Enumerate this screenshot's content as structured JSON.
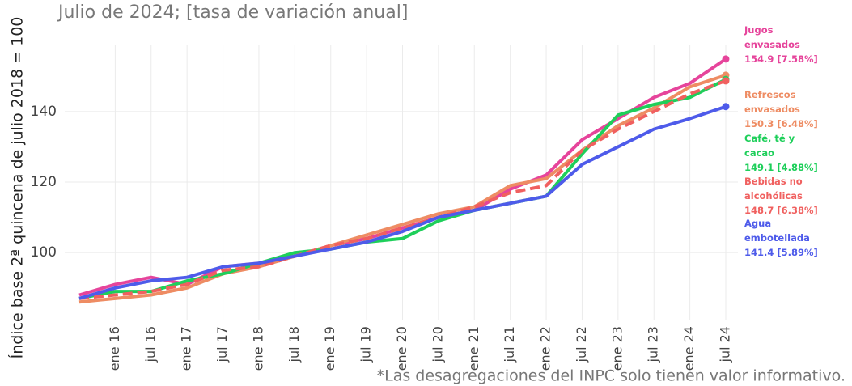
{
  "chart_data": {
    "type": "line",
    "title": "Julio de 2024; [tasa de variación anual]",
    "y_label": "Índice base 2ª quincena de julio 2018 = 100",
    "note": "*Las desagregaciones del INPC solo tienen valor informativo.",
    "categories": [
      null,
      "ene 16",
      "jul 16",
      "ene 17",
      "jul 17",
      "ene 18",
      "jul 18",
      "ene 19",
      "jul 19",
      "ene 20",
      "jul 20",
      "ene 21",
      "jul 21",
      "ene 22",
      "jul 22",
      "ene 23",
      "jul 23",
      "ene 24",
      "jul 24"
    ],
    "ylim": [
      81,
      159
    ],
    "yticks": [
      100,
      120,
      140
    ],
    "grid": true,
    "series": [
      {
        "name": "Jugos envasados",
        "label": "154.9 [7.58%]",
        "color": "#e6449b",
        "dashed": false,
        "values": [
          88,
          91,
          93,
          91,
          96,
          97,
          99,
          102,
          104,
          107,
          110,
          112,
          118,
          122,
          132,
          138,
          144,
          148,
          154.9
        ]
      },
      {
        "name": "Refrescos envasados",
        "label": "150.3 [6.48%]",
        "color": "#ee8c63",
        "dashed": false,
        "values": [
          86,
          87,
          88,
          90,
          94,
          96,
          99,
          102,
          105,
          108,
          111,
          113,
          119,
          121,
          129,
          136,
          141,
          147,
          150.3
        ]
      },
      {
        "name": "Café, té y cacao",
        "label": "149.1 [4.88%]",
        "color": "#1ecf5a",
        "dashed": false,
        "values": [
          87,
          89,
          89,
          92,
          94,
          97,
          100,
          101,
          103,
          104,
          109,
          112,
          114,
          116,
          128,
          139,
          142,
          144,
          149.1
        ]
      },
      {
        "name": "Bebidas no alcohólicas",
        "label": "148.7 [6.38%]",
        "color": "#f0605f",
        "dashed": true,
        "values": [
          87,
          88,
          89,
          91,
          95,
          96,
          99,
          102,
          104,
          107,
          110,
          113,
          117,
          119,
          129,
          135,
          140,
          145,
          148.7
        ]
      },
      {
        "name": "Agua embotellada",
        "label": "141.4 [5.89%]",
        "color": "#4e5bea",
        "dashed": false,
        "values": [
          87,
          90,
          92,
          93,
          96,
          97,
          99,
          101,
          103,
          106,
          110,
          112,
          114,
          116,
          125,
          130,
          135,
          138,
          141.4
        ]
      }
    ]
  }
}
